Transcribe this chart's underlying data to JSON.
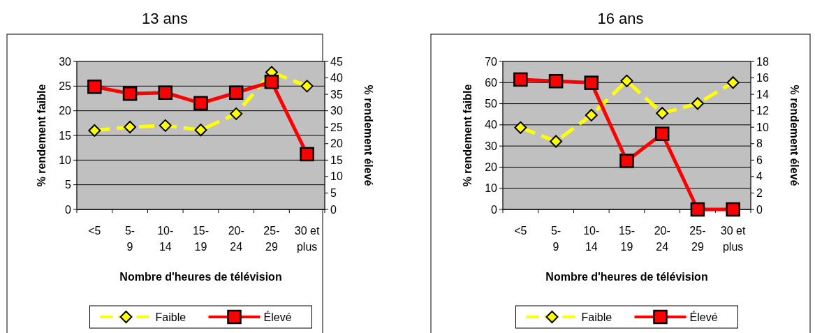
{
  "chart_data": [
    {
      "type": "line",
      "title": "13 ans",
      "xlabel": "Nombre d'heures de télévision",
      "ylabel": "% rendement faible",
      "y2label": "% rendement élevé",
      "categories": [
        "<5",
        "5-9",
        "10-14",
        "15-19",
        "20-24",
        "25-29",
        "30 et plus"
      ],
      "series": [
        {
          "name": "Faible",
          "color": "#ffff00",
          "values": [
            16,
            16.7,
            17,
            16.1,
            19.4,
            27.8,
            25
          ],
          "marker": "diamond",
          "line_style": "dashed"
        },
        {
          "name": "Élevé",
          "color": "#ff0000",
          "axis": "y2",
          "values": [
            37.3,
            35.2,
            35.5,
            32.3,
            35.5,
            38.8,
            16.8
          ],
          "marker": "square",
          "line_style": "solid"
        }
      ],
      "ylim": [
        0,
        30
      ],
      "yticks": [
        0,
        5,
        10,
        15,
        20,
        25,
        30
      ],
      "y2lim": [
        0,
        45
      ],
      "y2ticks": [
        0,
        5,
        10,
        15,
        20,
        25,
        30,
        35,
        40,
        45
      ],
      "grid": "y",
      "legend": "bottom"
    },
    {
      "type": "line",
      "title": "16 ans",
      "xlabel": "Nombre d'heures de télévision",
      "ylabel": "% rendement faible",
      "y2label": "% rendement élevé",
      "categories": [
        "<5",
        "5-9",
        "10-14",
        "15-19",
        "20-24",
        "25-29",
        "30 et plus"
      ],
      "series": [
        {
          "name": "Faible",
          "color": "#ffff00",
          "values": [
            38.7,
            32.2,
            44.6,
            60.8,
            45.5,
            50.1,
            60
          ],
          "marker": "diamond",
          "line_style": "dashed"
        },
        {
          "name": "Élevé",
          "color": "#ff0000",
          "axis": "y2",
          "values": [
            15.8,
            15.6,
            15.4,
            5.9,
            9.2,
            0,
            0
          ],
          "marker": "square",
          "line_style": "solid"
        }
      ],
      "ylim": [
        0,
        70
      ],
      "yticks": [
        0,
        10,
        20,
        30,
        40,
        50,
        60,
        70
      ],
      "y2lim": [
        0,
        18
      ],
      "y2ticks": [
        0,
        2,
        4,
        6,
        8,
        10,
        12,
        14,
        16,
        18
      ],
      "grid": "y",
      "legend": "bottom"
    }
  ]
}
